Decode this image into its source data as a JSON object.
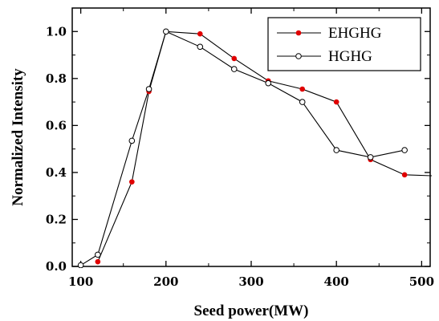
{
  "chart_data": {
    "type": "line",
    "xlabel": "Seed power(MW)",
    "ylabel": "Normalized Intensity",
    "xlim": [
      90,
      510
    ],
    "ylim": [
      0.0,
      1.1
    ],
    "xticks": [
      100,
      200,
      300,
      400,
      500
    ],
    "xtick_labels": [
      "100",
      "200",
      "300",
      "400",
      "500"
    ],
    "yticks": [
      0.0,
      0.2,
      0.4,
      0.6,
      0.8,
      1.0
    ],
    "ytick_labels": [
      "0.0",
      "0.2",
      "0.4",
      "0.6",
      "0.8",
      "1.0"
    ],
    "grid": false,
    "legend_position": "top-right",
    "series": [
      {
        "name": "EHGHG",
        "marker": "filled-circle",
        "color": "#e00000",
        "x": [
          120,
          160,
          180,
          200,
          240,
          280,
          320,
          360,
          400,
          440,
          480,
          520
        ],
        "y": [
          0.02,
          0.36,
          0.745,
          1.0,
          0.99,
          0.885,
          0.79,
          0.755,
          0.7,
          0.455,
          0.39,
          0.385
        ]
      },
      {
        "name": "HGHG",
        "marker": "open-circle",
        "color": "#000000",
        "x": [
          100,
          120,
          160,
          180,
          200,
          240,
          280,
          320,
          360,
          400,
          440,
          480
        ],
        "y": [
          0.005,
          0.05,
          0.535,
          0.755,
          1.0,
          0.935,
          0.84,
          0.78,
          0.7,
          0.495,
          0.465,
          0.495
        ]
      }
    ]
  }
}
